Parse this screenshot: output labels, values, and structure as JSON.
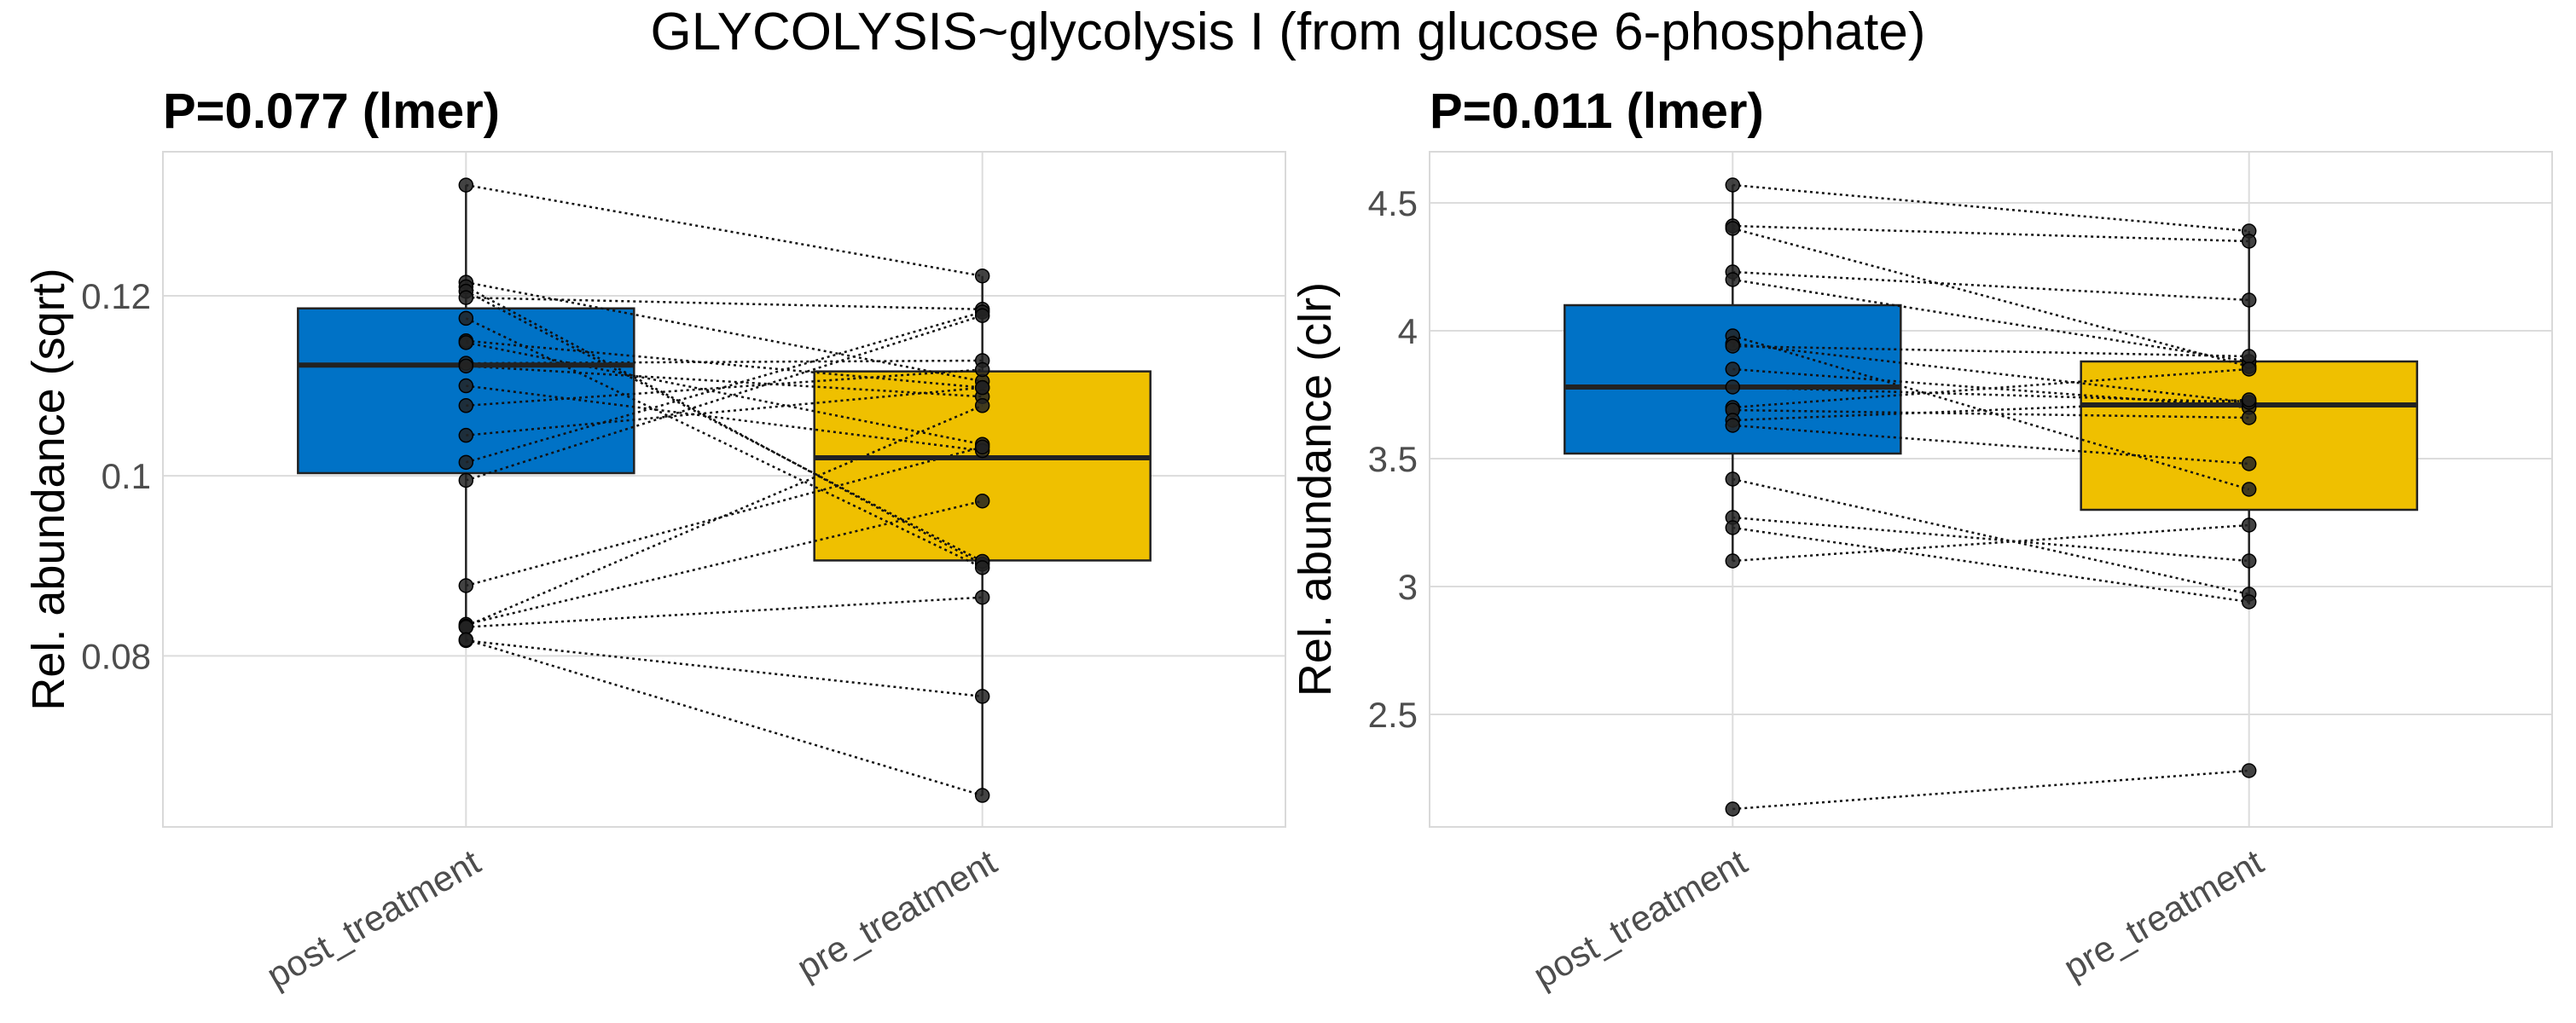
{
  "figure_title": "GLYCOLYSIS~glycolysis I (from glucose 6-phosphate)",
  "colors": {
    "post_treatment": "#0072C6",
    "pre_treatment": "#EFC000",
    "point": "#222222",
    "median": "#222222"
  },
  "chart_data": [
    {
      "type": "box",
      "title": "P=0.077 (lmer)",
      "xlabel": "",
      "ylabel": "Rel. abundance (sqrt)",
      "categories": [
        "post_treatment",
        "pre_treatment"
      ],
      "ylim": [
        0.061,
        0.136
      ],
      "yticks": [
        0.08,
        0.1,
        0.12
      ],
      "ytick_labels": [
        "0.08",
        "0.1",
        "0.12"
      ],
      "boxes": [
        {
          "group": "post_treatment",
          "q1": 0.1003,
          "median": 0.1123,
          "q3": 0.1186,
          "whisker_low": 0.0815,
          "whisker_high": 0.1323
        },
        {
          "group": "pre_treatment",
          "q1": 0.0906,
          "median": 0.102,
          "q3": 0.1116,
          "whisker_low": 0.0645,
          "whisker_high": 0.1222
        }
      ],
      "pairs": [
        [
          0.1323,
          0.1222
        ],
        [
          0.1215,
          0.1105
        ],
        [
          0.121,
          0.0902
        ],
        [
          0.1205,
          0.0905
        ],
        [
          0.1198,
          0.1185
        ],
        [
          0.1175,
          0.0898
        ],
        [
          0.115,
          0.1098
        ],
        [
          0.1148,
          0.1035
        ],
        [
          0.1125,
          0.1128
        ],
        [
          0.1122,
          0.1088
        ],
        [
          0.11,
          0.1028
        ],
        [
          0.1078,
          0.1118
        ],
        [
          0.1045,
          0.1098
        ],
        [
          0.1015,
          0.1182
        ],
        [
          0.0995,
          0.1178
        ],
        [
          0.0878,
          0.1032
        ],
        [
          0.0835,
          0.0972
        ],
        [
          0.0833,
          0.1078
        ],
        [
          0.0817,
          0.0755
        ],
        [
          0.0832,
          0.0865
        ],
        [
          0.0818,
          0.0645
        ]
      ]
    },
    {
      "type": "box",
      "title": "P=0.011 (lmer)",
      "xlabel": "",
      "ylabel": "Rel. abundance (clr)",
      "categories": [
        "post_treatment",
        "pre_treatment"
      ],
      "ylim": [
        2.06,
        4.7
      ],
      "yticks": [
        2.5,
        3,
        3.5,
        4,
        4.5
      ],
      "ytick_labels": [
        "2.5",
        "3",
        "3.5",
        "4",
        "4.5"
      ],
      "boxes": [
        {
          "group": "post_treatment",
          "q1": 3.52,
          "median": 3.78,
          "q3": 4.1,
          "whisker_low": 3.1,
          "whisker_high": 4.57
        },
        {
          "group": "pre_treatment",
          "q1": 3.3,
          "median": 3.71,
          "q3": 3.88,
          "whisker_low": 2.93,
          "whisker_high": 4.39
        }
      ],
      "pairs": [
        [
          4.57,
          4.39
        ],
        [
          4.41,
          4.35
        ],
        [
          4.4,
          3.86
        ],
        [
          4.23,
          4.12
        ],
        [
          4.2,
          3.88
        ],
        [
          3.98,
          3.38
        ],
        [
          3.95,
          3.72
        ],
        [
          3.94,
          3.9
        ],
        [
          3.85,
          3.7
        ],
        [
          3.78,
          3.72
        ],
        [
          3.7,
          3.85
        ],
        [
          3.69,
          3.66
        ],
        [
          3.65,
          3.73
        ],
        [
          3.63,
          3.48
        ],
        [
          3.42,
          2.97
        ],
        [
          3.27,
          3.1
        ],
        [
          3.23,
          2.94
        ],
        [
          3.1,
          3.24
        ],
        [
          2.13,
          2.28
        ]
      ]
    }
  ]
}
